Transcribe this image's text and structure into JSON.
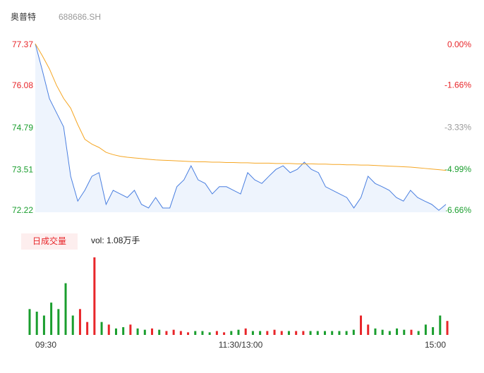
{
  "header": {
    "name": "奥普特",
    "code": "688686.SH"
  },
  "chart_data": [
    {
      "type": "line",
      "ylim": [
        72.22,
        77.37
      ],
      "yticks": [
        77.37,
        76.08,
        74.79,
        73.51,
        72.22
      ],
      "y2lim": [
        -6.66,
        0
      ],
      "y2ticks": [
        {
          "value": 0,
          "label": "0.00%"
        },
        {
          "value": -1.66,
          "label": "-1.66%"
        },
        {
          "value": -3.33,
          "label": "-3.33%"
        },
        {
          "value": -4.99,
          "label": "-4.99%"
        },
        {
          "value": -6.66,
          "label": "-6.66%"
        }
      ],
      "up_color": "#e8262a",
      "flat_color": "#999999",
      "down_color": "#1a9e2e",
      "xlim": [
        0,
        240
      ],
      "xticks": [
        {
          "value": 0,
          "label": "09:30"
        },
        {
          "value": 120,
          "label": "11:30/13:00"
        },
        {
          "value": 240,
          "label": "15:00"
        }
      ],
      "series": [
        {
          "color": "#4a7fe0",
          "fill": "#eef4fd",
          "values": [
            77.37,
            76.55,
            75.69,
            75.26,
            74.83,
            73.32,
            72.56,
            72.89,
            73.32,
            73.43,
            72.46,
            72.89,
            72.78,
            72.67,
            72.89,
            72.46,
            72.35,
            72.67,
            72.35,
            72.35,
            73.0,
            73.21,
            73.64,
            73.21,
            73.1,
            72.78,
            73.0,
            73.0,
            72.89,
            72.78,
            73.43,
            73.21,
            73.1,
            73.32,
            73.53,
            73.64,
            73.43,
            73.53,
            73.75,
            73.53,
            73.43,
            73.0,
            72.89,
            72.78,
            72.67,
            72.35,
            72.67,
            73.32,
            73.1,
            73.0,
            72.89,
            72.67,
            72.56,
            72.89,
            72.67,
            72.56,
            72.46,
            72.28,
            72.46
          ]
        },
        {
          "color": "#f5a623",
          "values": [
            77.37,
            77.0,
            76.6,
            76.1,
            75.7,
            75.4,
            74.9,
            74.45,
            74.3,
            74.2,
            74.05,
            73.98,
            73.93,
            73.9,
            73.88,
            73.86,
            73.84,
            73.82,
            73.81,
            73.8,
            73.79,
            73.78,
            73.77,
            73.76,
            73.76,
            73.75,
            73.75,
            73.74,
            73.74,
            73.73,
            73.73,
            73.72,
            73.72,
            73.72,
            73.71,
            73.71,
            73.71,
            73.7,
            73.7,
            73.7,
            73.69,
            73.69,
            73.68,
            73.68,
            73.67,
            73.67,
            73.66,
            73.66,
            73.65,
            73.64,
            73.63,
            73.62,
            73.61,
            73.6,
            73.58,
            73.56,
            73.54,
            73.52,
            73.5
          ]
        }
      ]
    },
    {
      "type": "volume",
      "title": "日成交量",
      "volume_label": "vol: 1.08万手",
      "ylim": [
        0,
        6
      ],
      "values": [
        2.0,
        1.8,
        1.5,
        2.5,
        2.0,
        4.0,
        1.5,
        2.0,
        1.0,
        6.0,
        1.0,
        0.8,
        0.5,
        0.6,
        0.8,
        0.5,
        0.4,
        0.5,
        0.4,
        0.3,
        0.4,
        0.3,
        0.2,
        0.3,
        0.3,
        0.2,
        0.3,
        0.2,
        0.3,
        0.4,
        0.5,
        0.3,
        0.3,
        0.3,
        0.4,
        0.3,
        0.3,
        0.3,
        0.3,
        0.3,
        0.3,
        0.3,
        0.3,
        0.3,
        0.3,
        0.4,
        1.5,
        0.8,
        0.5,
        0.4,
        0.3,
        0.5,
        0.4,
        0.4,
        0.3,
        0.8,
        0.6,
        1.5,
        1.08
      ]
    }
  ]
}
